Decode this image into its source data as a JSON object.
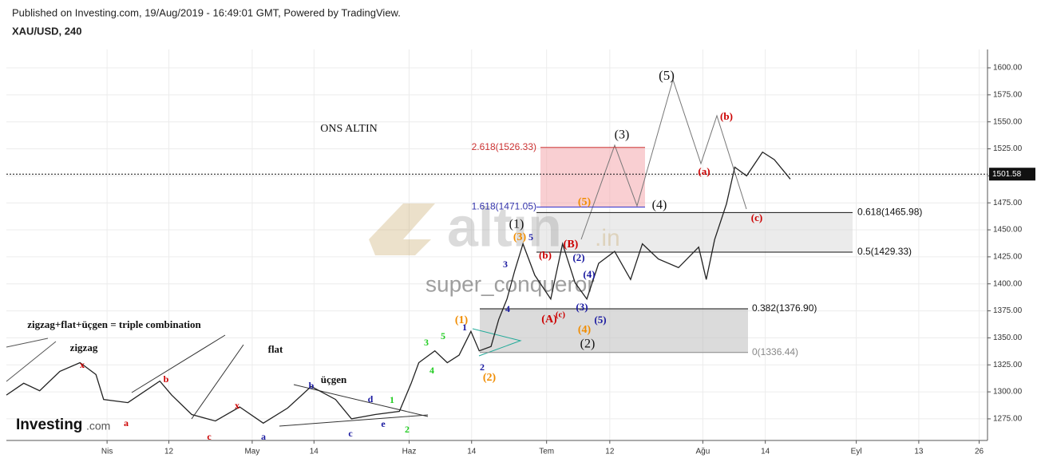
{
  "header": {
    "published": "Published on Investing.com, 19/Aug/2019 - 16:49:01 GMT, Powered by TradingView.",
    "symbol": "XAU/USD, 240"
  },
  "watermark": {
    "brand": "altın",
    "suffix": ".in",
    "user": "super_conqueror",
    "logo": "Investing",
    "logo_suffix": ".com"
  },
  "chart_data": {
    "type": "line",
    "color": "#222222",
    "grid": true,
    "x": [
      0,
      2.5,
      4.8,
      7.7,
      10.6,
      12.9,
      14.0,
      17.5,
      22.1,
      23.8,
      26.7,
      30.1,
      33.6,
      37.0,
      40.5,
      43.9,
      47.4,
      49.7,
      53.1,
      56.6,
      58.3,
      59.4,
      61.7,
      63.5,
      65.2,
      66.9,
      68.1,
      69.8,
      70.9,
      72.1,
      73.2,
      74.4,
      76.1,
      78.4,
      80.1,
      81.9,
      83.6,
      85.3,
      87.6,
      89.9,
      91.6,
      93.9,
      96.8,
      99.7,
      100.8,
      102.0,
      103.7,
      104.9,
      106.6,
      108.9,
      110.6,
      112.9
    ],
    "values": [
      1297,
      1308,
      1301,
      1319,
      1327,
      1316,
      1293,
      1290,
      1310,
      1297,
      1279,
      1273,
      1286,
      1271,
      1285,
      1305,
      1293,
      1275,
      1279,
      1282,
      1308,
      1327,
      1338,
      1327,
      1334,
      1356,
      1338,
      1342,
      1367,
      1386,
      1412,
      1437,
      1408,
      1386,
      1437,
      1401,
      1386,
      1419,
      1430,
      1404,
      1437,
      1423,
      1415,
      1434,
      1404,
      1441,
      1474,
      1508,
      1500,
      1522,
      1515,
      1497
    ],
    "xlim": [
      0,
      141.3
    ],
    "xticks": [
      {
        "value": 14.5,
        "label": "Nis"
      },
      {
        "value": 23.4,
        "label": "12"
      },
      {
        "value": 35.4,
        "label": "May"
      },
      {
        "value": 44.3,
        "label": "14"
      },
      {
        "value": 58.0,
        "label": "Haz"
      },
      {
        "value": 67.0,
        "label": "14"
      },
      {
        "value": 77.8,
        "label": "Tem"
      },
      {
        "value": 86.9,
        "label": "12"
      },
      {
        "value": 100.3,
        "label": "Ağu"
      },
      {
        "value": 109.3,
        "label": "14"
      },
      {
        "value": 122.4,
        "label": "Eyl"
      },
      {
        "value": 131.4,
        "label": "13"
      },
      {
        "value": 140.1,
        "label": "26"
      }
    ],
    "ylim": [
      1255,
      1617
    ],
    "yticks": [
      {
        "value": 1275,
        "label": "1275.00"
      },
      {
        "value": 1300,
        "label": "1300.00"
      },
      {
        "value": 1325,
        "label": "1325.00"
      },
      {
        "value": 1350,
        "label": "1350.00"
      },
      {
        "value": 1375,
        "label": "1375.00"
      },
      {
        "value": 1400,
        "label": "1400.00"
      },
      {
        "value": 1425,
        "label": "1425.00"
      },
      {
        "value": 1450,
        "label": "1450.00"
      },
      {
        "value": 1475,
        "label": "1475.00"
      },
      {
        "value": 1500,
        "label": "1500.00"
      },
      {
        "value": 1525,
        "label": "1525.00"
      },
      {
        "value": 1550,
        "label": "1550.00"
      },
      {
        "value": 1575,
        "label": "1575.00"
      },
      {
        "value": 1600,
        "label": "1600.00"
      }
    ],
    "last_price": 1501.58,
    "fib_levels": [
      {
        "label": "2.618(1526.33)",
        "value": 1526.33
      },
      {
        "label": "1.618(1471.05)",
        "value": 1471.05
      },
      {
        "label": "0.618(1465.98)",
        "value": 1465.98
      },
      {
        "label": "0.5(1429.33)",
        "value": 1429.33
      },
      {
        "label": "0.382(1376.90)",
        "value": 1376.9
      },
      {
        "label": "0(1336.44)",
        "value": 1336.44
      }
    ],
    "annotations": [
      "ONS ALTIN",
      "zigzag+flat+üçgen = triple combination",
      "zigzag",
      "flat",
      "üçgen",
      "x",
      "b",
      "a",
      "c",
      "x",
      "a",
      "b",
      "d",
      "c",
      "e",
      "1",
      "2",
      "3",
      "4",
      "5",
      "(1)",
      "1",
      "2",
      "(2)",
      "3",
      "4",
      "(3)",
      "5",
      "(1)",
      "(b)",
      "(A)",
      "(c)",
      "(B)",
      "(2)",
      "(4)",
      "(3)",
      "(5)",
      "(4)",
      "(2)",
      "(5)",
      "(4)",
      "(3)",
      "(5)",
      "(b)",
      "(a)",
      "(c)"
    ]
  }
}
